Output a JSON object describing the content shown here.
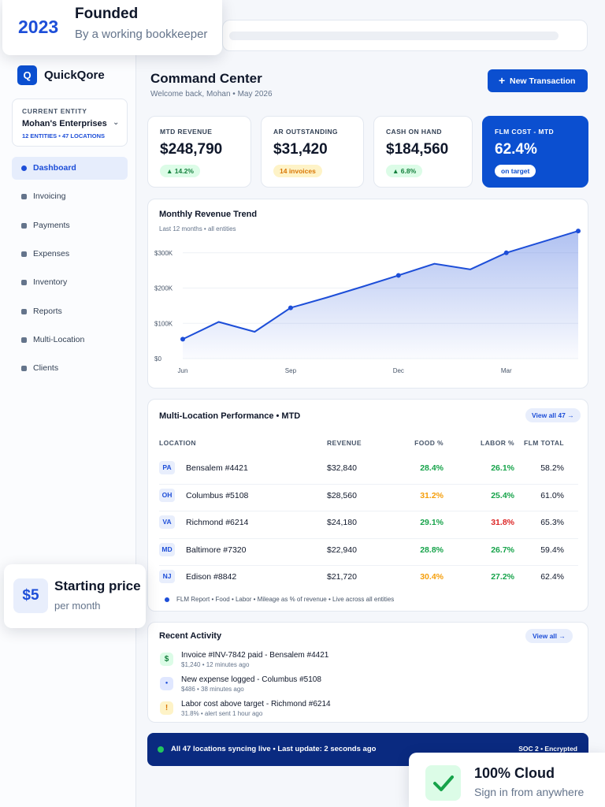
{
  "founded": {
    "year": "2023",
    "title": "Founded",
    "subtitle": "By a working bookkeeper"
  },
  "price": {
    "amount": "$5",
    "title": "Starting price",
    "subtitle": "per month"
  },
  "cloud": {
    "title": "100% Cloud",
    "subtitle": "Sign in from anywhere"
  },
  "sidebar": {
    "logo": "Q",
    "brand": "QuickQore",
    "entity": {
      "label": "CURRENT ENTITY",
      "name": "Mohan's Enterprises",
      "meta": "12 ENTITIES • 47 LOCATIONS"
    },
    "nav": [
      "Dashboard",
      "Invoicing",
      "Payments",
      "Expenses",
      "Inventory",
      "Reports",
      "Multi-Location",
      "Clients"
    ]
  },
  "header": {
    "title": "Command Center",
    "subtitle": "Welcome back, Mohan • May 2026",
    "button": "New Transaction"
  },
  "kpis": [
    {
      "label": "MTD REVENUE",
      "value": "$248,790",
      "badge": "▲ 14.2%"
    },
    {
      "label": "AR OUTSTANDING",
      "value": "$31,420",
      "badge": "14 invoices"
    },
    {
      "label": "CASH ON HAND",
      "value": "$184,560",
      "badge": "▲ 6.8%"
    },
    {
      "label": "FLM COST - MTD",
      "value": "62.4%",
      "badge": "on target"
    }
  ],
  "chart_data": {
    "type": "line",
    "title": "Monthly Revenue Trend",
    "subtitle": "Last 12 months • all entities",
    "categories": [
      "Jun",
      null,
      null,
      "Sep",
      null,
      null,
      "Dec",
      null,
      null,
      "Mar",
      null,
      null
    ],
    "values": [
      55,
      104,
      76,
      144,
      173,
      204,
      236,
      269,
      253,
      300,
      331,
      362
    ],
    "color": "#1d4ed8",
    "ylim": [
      0,
      370
    ],
    "yticks": [
      {
        "value": 0,
        "label": "$0"
      },
      {
        "value": 100,
        "label": "$100K"
      },
      {
        "value": 200,
        "label": "$200K"
      },
      {
        "value": 300,
        "label": "$300K"
      }
    ],
    "grid": true
  },
  "table": {
    "title": "Multi-Location Performance • MTD",
    "link": "View all 47 →",
    "columns": [
      "LOCATION",
      "REVENUE",
      "FOOD %",
      "LABOR %",
      "FLM TOTAL"
    ],
    "rows": [
      {
        "code": "PA",
        "name": "Bensalem #4421",
        "revenue": "$32,840",
        "food": {
          "text": "28.4%",
          "color": "#16a34a"
        },
        "labor": {
          "text": "26.1%",
          "color": "#16a34a"
        },
        "flm": "58.2%"
      },
      {
        "code": "OH",
        "name": "Columbus #5108",
        "revenue": "$28,560",
        "food": {
          "text": "31.2%",
          "color": "#f59e0b"
        },
        "labor": {
          "text": "25.4%",
          "color": "#16a34a"
        },
        "flm": "61.0%"
      },
      {
        "code": "VA",
        "name": "Richmond #6214",
        "revenue": "$24,180",
        "food": {
          "text": "29.1%",
          "color": "#16a34a"
        },
        "labor": {
          "text": "31.8%",
          "color": "#dc2626"
        },
        "flm": "65.3%"
      },
      {
        "code": "MD",
        "name": "Baltimore #7320",
        "revenue": "$22,940",
        "food": {
          "text": "28.8%",
          "color": "#16a34a"
        },
        "labor": {
          "text": "26.7%",
          "color": "#16a34a"
        },
        "flm": "59.4%"
      },
      {
        "code": "NJ",
        "name": "Edison #8842",
        "revenue": "$21,720",
        "food": {
          "text": "30.4%",
          "color": "#f59e0b"
        },
        "labor": {
          "text": "27.2%",
          "color": "#16a34a"
        },
        "flm": "62.4%"
      }
    ],
    "note": "FLM Report • Food • Labor • Mileage as % of revenue • Live across all entities"
  },
  "activity": {
    "title": "Recent Activity",
    "link": "View all →",
    "items": [
      {
        "icon": "$",
        "title": "Invoice #INV-7842 paid - Bensalem #4421",
        "meta": "$1,240 • 12 minutes ago"
      },
      {
        "icon": "●",
        "title": "New expense logged - Columbus #5108",
        "meta": "$486 • 38 minutes ago"
      },
      {
        "icon": "!",
        "title": "Labor cost above target - Richmond #6214",
        "meta": "31.8% • alert sent 1 hour ago"
      }
    ]
  },
  "status": {
    "text": "All 47 locations syncing live • Last update: 2 seconds ago",
    "right": "SOC 2 • Encrypted"
  }
}
